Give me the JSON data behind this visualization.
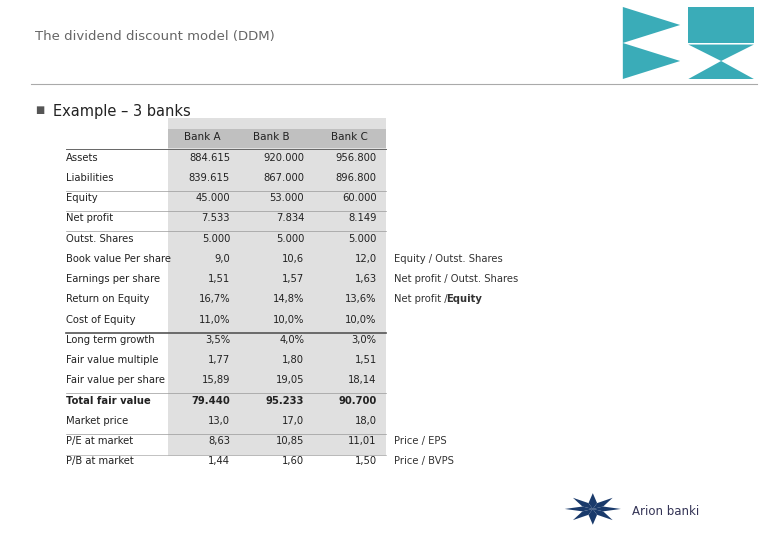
{
  "title": "The dividend discount model (DDM)",
  "subtitle": "Example – 3 banks",
  "header_row": [
    "",
    "Bank A",
    "Bank B",
    "Bank C"
  ],
  "rows": [
    [
      "Assets",
      "884.615",
      "920.000",
      "956.800",
      ""
    ],
    [
      "Liabilities",
      "839.615",
      "867.000",
      "896.800",
      ""
    ],
    [
      "Equity",
      "45.000",
      "53.000",
      "60.000",
      ""
    ],
    [
      "Net profit",
      "7.533",
      "7.834",
      "8.149",
      ""
    ],
    [
      "Outst. Shares",
      "5.000",
      "5.000",
      "5.000",
      ""
    ],
    [
      "Book value Per share",
      "9,0",
      "10,6",
      "12,0",
      "Equity / Outst. Shares"
    ],
    [
      "Earnings per share",
      "1,51",
      "1,57",
      "1,63",
      "Net profit / Outst. Shares"
    ],
    [
      "Return on Equity",
      "16,7%",
      "14,8%",
      "13,6%",
      "Net profit / Equity"
    ],
    [
      "Cost of Equity",
      "11,0%",
      "10,0%",
      "10,0%",
      ""
    ],
    [
      "Long term growth",
      "3,5%",
      "4,0%",
      "3,0%",
      ""
    ],
    [
      "Fair value multiple",
      "1,77",
      "1,80",
      "1,51",
      ""
    ],
    [
      "Fair value per share",
      "15,89",
      "19,05",
      "18,14",
      ""
    ],
    [
      "Total fair value",
      "79.440",
      "95.233",
      "90.700",
      ""
    ],
    [
      "Market price",
      "13,0",
      "17,0",
      "18,0",
      ""
    ],
    [
      "P/E at market",
      "8,63",
      "10,85",
      "11,01",
      "Price / EPS"
    ],
    [
      "P/B at market",
      "1,44",
      "1,60",
      "1,50",
      "Price / BVPS"
    ]
  ],
  "bold_rows": [
    12
  ],
  "separator_rows_after": [
    2,
    3,
    4,
    9,
    12,
    14
  ],
  "thick_separator_after": [
    9
  ],
  "bg_color": "#ffffff",
  "title_color": "#666666",
  "text_color": "#222222",
  "note_color": "#333333",
  "shaded_col_bg": "#e0e0e0",
  "header_bg": "#c0c0c0",
  "teal_light": "#3aacb8",
  "teal_dark": "#2b8a96",
  "logo_text": "Arion banki",
  "logo_text_color": "#333355"
}
